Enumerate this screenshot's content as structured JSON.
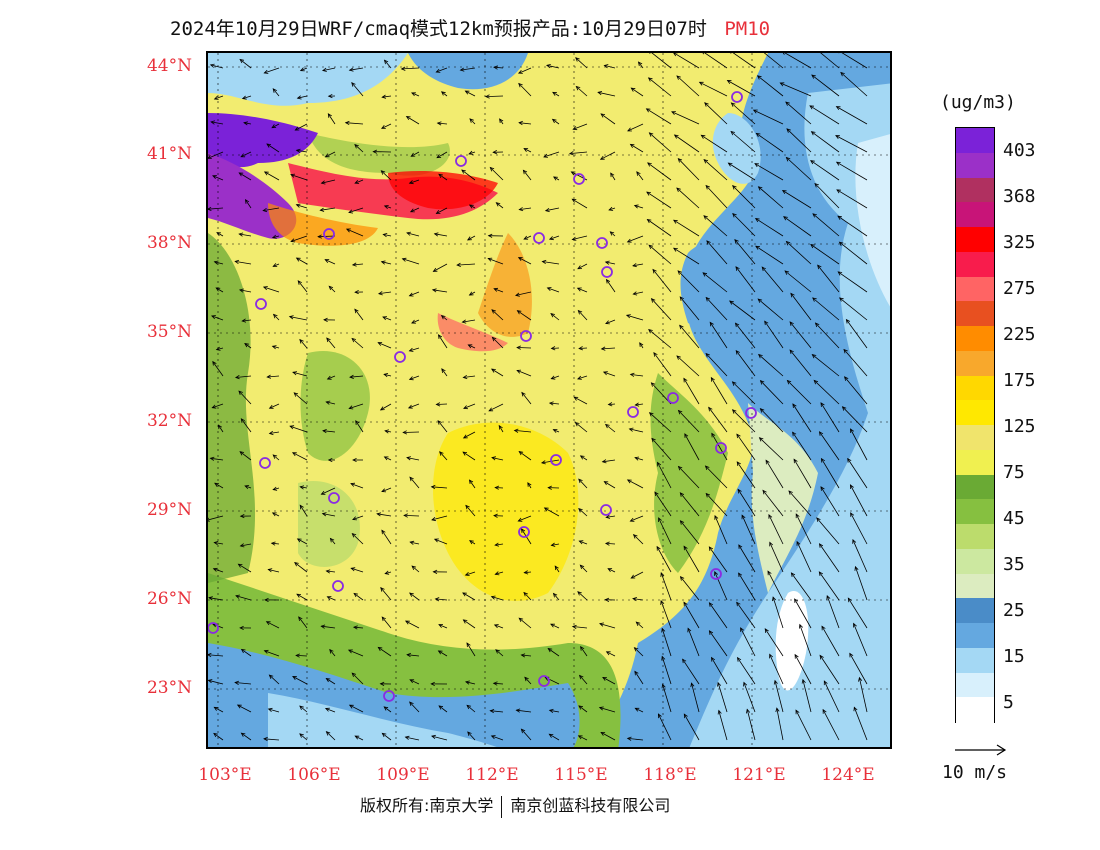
{
  "title": {
    "main": "2024年10月29日WRF/cmaq模式12km预报产品:10月29日07时",
    "variable": "PM10"
  },
  "axes": {
    "lat_labels": [
      "44°N",
      "41°N",
      "38°N",
      "35°N",
      "32°N",
      "29°N",
      "26°N",
      "23°N"
    ],
    "lon_labels": [
      "103°E",
      "106°E",
      "109°E",
      "112°E",
      "115°E",
      "118°E",
      "121°E",
      "124°E"
    ]
  },
  "legend": {
    "unit": "(ug/m3)",
    "labels": [
      "403",
      "368",
      "325",
      "275",
      "225",
      "175",
      "125",
      "75",
      "45",
      "35",
      "25",
      "15",
      "5"
    ],
    "colors": [
      "#7b22d8",
      "#9b30c8",
      "#b03060",
      "#c81478",
      "#ff0000",
      "#f81c4c",
      "#ff6464",
      "#e85020",
      "#ff8c00",
      "#f8a82c",
      "#ffd800",
      "#ffe800",
      "#f0e46c",
      "#f0f050",
      "#6aaa34",
      "#86c040",
      "#bcdc6c",
      "#cce8a0",
      "#dcecc0",
      "#4a8cc8",
      "#64a8e0",
      "#a4d8f4",
      "#d8f0fc",
      "#ffffff"
    ],
    "swatch_colors_ordered_top_to_bottom": [
      "#7b22d8",
      "#9b30c8",
      "#b03060",
      "#c81478",
      "#ff0000",
      "#f81c4c",
      "#ff6464",
      "#e85020",
      "#ff8c00",
      "#f8a82c",
      "#ffd800",
      "#ffe800",
      "#f0e46c",
      "#f0f050",
      "#6aaa34",
      "#86c040",
      "#bcdc6c",
      "#cce8a0",
      "#dcecc0",
      "#4a8cc8",
      "#64a8e0",
      "#a4d8f4",
      "#d8f0fc",
      "#ffffff"
    ]
  },
  "wind_reference": {
    "label": "10 m/s"
  },
  "copyright": {
    "part1": "版权所有:南京大学",
    "part2": "南京创蓝科技有限公司"
  },
  "colors": {
    "axis_label": "#e8303a",
    "station_marker": "#8a2be2"
  }
}
